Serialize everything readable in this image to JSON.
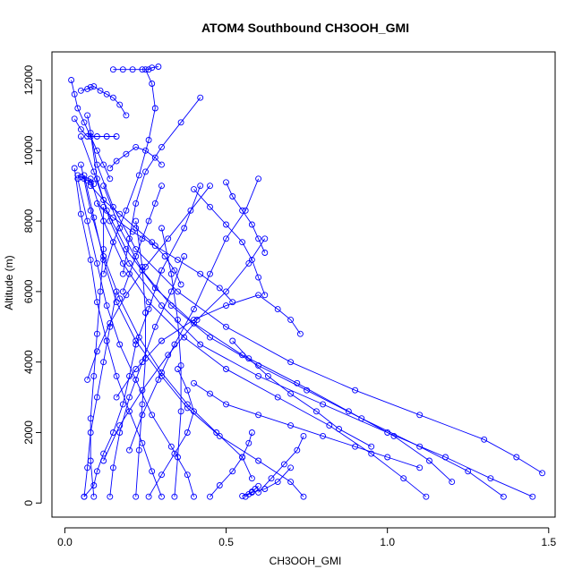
{
  "chart_data": {
    "type": "scatter",
    "title": "ATOM4 Southbound CH3OOH_GMI",
    "xlabel": "CH3OOH_GMI",
    "ylabel": "Altitude (m)",
    "xlim": [
      -0.04,
      1.52
    ],
    "ylim": [
      -400,
      12800
    ],
    "x_ticks": [
      0.0,
      0.5,
      1.0,
      1.5
    ],
    "x_tick_labels": [
      "0.0",
      "0.5",
      "1.0",
      "1.5"
    ],
    "y_ticks": [
      0,
      2000,
      4000,
      6000,
      8000,
      10000,
      12000
    ],
    "y_tick_labels": [
      "0",
      "2000",
      "4000",
      "6000",
      "8000",
      "10000",
      "12000"
    ],
    "grid": false,
    "marker": "open-circle",
    "color": "#0000ff",
    "series": [
      {
        "x": [
          0.06,
          0.09,
          0.1,
          0.12,
          0.15,
          0.18,
          0.2,
          0.22,
          0.26,
          0.3,
          0.37,
          0.42
        ],
        "y": [
          180,
          500,
          900,
          1400,
          2000,
          2800,
          3600,
          4500,
          5500,
          6600,
          7800,
          9000
        ]
      },
      {
        "x": [
          1.48,
          1.4,
          1.3,
          1.1,
          0.9,
          0.7,
          0.5,
          0.35,
          0.22,
          0.15,
          0.1,
          0.07
        ],
        "y": [
          850,
          1300,
          1800,
          2500,
          3200,
          4000,
          5000,
          6000,
          7200,
          8400,
          9600,
          11000
        ]
      },
      {
        "x": [
          1.45,
          1.32,
          1.18,
          1.0,
          0.8,
          0.6,
          0.42,
          0.3,
          0.2,
          0.14,
          0.1,
          0.08
        ],
        "y": [
          180,
          700,
          1300,
          2000,
          2800,
          3600,
          4500,
          5600,
          6800,
          8000,
          9200,
          10500
        ]
      },
      {
        "x": [
          1.36,
          1.25,
          1.1,
          0.92,
          0.75,
          0.6,
          0.45,
          0.33,
          0.24,
          0.17,
          0.12
        ],
        "y": [
          180,
          900,
          1600,
          2400,
          3200,
          3900,
          4700,
          5600,
          6600,
          7800,
          9000
        ]
      },
      {
        "x": [
          1.2,
          1.13,
          1.02,
          0.88,
          0.72,
          0.55,
          0.4,
          0.28,
          0.19,
          0.13,
          0.09,
          0.05
        ],
        "y": [
          600,
          1200,
          1900,
          2600,
          3400,
          4200,
          5100,
          6100,
          7200,
          8300,
          9400,
          10400
        ]
      },
      {
        "x": [
          1.12,
          1.05,
          0.95,
          0.82,
          0.66,
          0.5,
          0.37,
          0.26,
          0.18,
          0.12,
          0.08
        ],
        "y": [
          180,
          700,
          1400,
          2200,
          3000,
          3800,
          4700,
          5700,
          6800,
          8000,
          9200
        ]
      },
      {
        "x": [
          0.74,
          0.7,
          0.6,
          0.48,
          0.38,
          0.3,
          0.22,
          0.16,
          0.12,
          0.09,
          0.06
        ],
        "y": [
          180,
          600,
          1200,
          1900,
          2700,
          3600,
          4600,
          5700,
          6900,
          8100,
          9300
        ]
      },
      {
        "x": [
          0.58,
          0.55,
          0.47,
          0.38,
          0.3,
          0.23,
          0.17,
          0.12,
          0.08,
          0.05
        ],
        "y": [
          700,
          1300,
          2000,
          2800,
          3700,
          4700,
          5800,
          7000,
          8300,
          9600
        ]
      },
      {
        "x": [
          0.4,
          0.38,
          0.33,
          0.27,
          0.22,
          0.17,
          0.13,
          0.1,
          0.07,
          0.04
        ],
        "y": [
          180,
          800,
          1600,
          2500,
          3500,
          4500,
          5600,
          6800,
          8000,
          9200
        ]
      },
      {
        "x": [
          0.3,
          0.27,
          0.24,
          0.2,
          0.16,
          0.13,
          0.1,
          0.08,
          0.05,
          0.03
        ],
        "y": [
          180,
          900,
          1700,
          2600,
          3600,
          4600,
          5700,
          6900,
          8200,
          9500
        ]
      },
      {
        "x": [
          0.14,
          0.15,
          0.17,
          0.2,
          0.24,
          0.28,
          0.33,
          0.37
        ],
        "y": [
          180,
          1000,
          2000,
          3000,
          4000,
          5000,
          6000,
          7000
        ]
      },
      {
        "x": [
          0.2,
          0.24,
          0.29,
          0.34,
          0.4,
          0.45,
          0.5,
          0.56,
          0.6
        ],
        "y": [
          1500,
          2500,
          3500,
          4500,
          5500,
          6500,
          7500,
          8300,
          9200
        ]
      },
      {
        "x": [
          0.12,
          0.17,
          0.24,
          0.32,
          0.41,
          0.5,
          0.57,
          0.62
        ],
        "y": [
          1200,
          2200,
          3200,
          4200,
          5200,
          6000,
          6800,
          7500
        ]
      },
      {
        "x": [
          0.07,
          0.1,
          0.14,
          0.19,
          0.25,
          0.32,
          0.39,
          0.45
        ],
        "y": [
          3500,
          4300,
          5100,
          5900,
          6700,
          7500,
          8300,
          9000
        ]
      },
      {
        "x": [
          0.16,
          0.22,
          0.3,
          0.4,
          0.5,
          0.6,
          0.66,
          0.7,
          0.73
        ],
        "y": [
          3000,
          3800,
          4600,
          5200,
          5600,
          5900,
          5500,
          5200,
          4800
        ]
      },
      {
        "x": [
          0.12,
          0.15,
          0.19,
          0.23,
          0.26,
          0.28,
          0.27,
          0.25
        ],
        "y": [
          6500,
          7400,
          8300,
          9300,
          10300,
          11200,
          11900,
          12300
        ]
      },
      {
        "x": [
          0.15,
          0.18,
          0.21,
          0.24,
          0.26,
          0.27,
          0.29
        ],
        "y": [
          12300,
          12300,
          12300,
          12300,
          12300,
          12350,
          12380
        ]
      },
      {
        "x": [
          0.18,
          0.2,
          0.22,
          0.25,
          0.3,
          0.36,
          0.42
        ],
        "y": [
          6500,
          7500,
          8500,
          9400,
          10100,
          10800,
          11500
        ]
      },
      {
        "x": [
          0.02,
          0.03,
          0.04,
          0.06,
          0.08,
          0.1,
          0.12,
          0.14
        ],
        "y": [
          12000,
          11600,
          11200,
          10800,
          10400,
          10000,
          9600,
          9200
        ]
      },
      {
        "x": [
          0.05,
          0.07,
          0.08,
          0.09,
          0.11,
          0.13,
          0.15,
          0.17,
          0.19
        ],
        "y": [
          11700,
          11750,
          11800,
          11820,
          11700,
          11600,
          11500,
          11300,
          11000
        ]
      },
      {
        "x": [
          0.03,
          0.05,
          0.07,
          0.1,
          0.13,
          0.16
        ],
        "y": [
          10900,
          10600,
          10400,
          10400,
          10400,
          10400
        ]
      },
      {
        "x": [
          0.08,
          0.12,
          0.17,
          0.22,
          0.27,
          0.31,
          0.34,
          0.36
        ],
        "y": [
          9000,
          8600,
          8200,
          7800,
          7400,
          7000,
          6600,
          6200
        ]
      },
      {
        "x": [
          0.1,
          0.15,
          0.21,
          0.28,
          0.35,
          0.42,
          0.48,
          0.52
        ],
        "y": [
          8500,
          8100,
          7700,
          7300,
          6900,
          6500,
          6100,
          5700
        ]
      },
      {
        "x": [
          0.4,
          0.45,
          0.5,
          0.55,
          0.58,
          0.6,
          0.62
        ],
        "y": [
          8900,
          8400,
          7900,
          7400,
          6900,
          6400,
          5900
        ]
      },
      {
        "x": [
          0.5,
          0.52,
          0.55,
          0.58,
          0.6,
          0.62
        ],
        "y": [
          9100,
          8700,
          8300,
          7900,
          7500,
          7100
        ]
      },
      {
        "x": [
          0.06,
          0.07,
          0.08,
          0.1,
          0.12,
          0.14,
          0.16
        ],
        "y": [
          180,
          1000,
          2000,
          3000,
          4000,
          5000,
          6000
        ]
      },
      {
        "x": [
          0.09,
          0.08,
          0.08,
          0.09,
          0.1,
          0.11,
          0.12,
          0.12
        ],
        "y": [
          180,
          1200,
          2400,
          3600,
          4800,
          6000,
          7200,
          8400
        ]
      },
      {
        "x": [
          0.22,
          0.23,
          0.24,
          0.25,
          0.25,
          0.24,
          0.22
        ],
        "y": [
          180,
          1500,
          2800,
          4100,
          5400,
          6700,
          8000
        ]
      },
      {
        "x": [
          0.34,
          0.35,
          0.36,
          0.36,
          0.35,
          0.33,
          0.3
        ],
        "y": [
          180,
          1300,
          2600,
          3900,
          5200,
          6500,
          7800
        ]
      },
      {
        "x": [
          0.45,
          0.48,
          0.52,
          0.55,
          0.57,
          0.58
        ],
        "y": [
          180,
          500,
          900,
          1300,
          1700,
          2000
        ]
      },
      {
        "x": [
          0.6,
          0.64,
          0.68,
          0.72,
          0.74
        ],
        "y": [
          300,
          700,
          1100,
          1500,
          1900
        ]
      },
      {
        "x": [
          1.1,
          1.0,
          0.9,
          0.8,
          0.7,
          0.6,
          0.5,
          0.45,
          0.4
        ],
        "y": [
          1000,
          1300,
          1600,
          1900,
          2200,
          2500,
          2800,
          3100,
          3400
        ]
      },
      {
        "x": [
          0.95,
          0.85,
          0.78,
          0.7,
          0.63,
          0.57,
          0.52
        ],
        "y": [
          1600,
          2100,
          2600,
          3100,
          3600,
          4100,
          4600
        ]
      },
      {
        "x": [
          0.3,
          0.28,
          0.26,
          0.24,
          0.22,
          0.2,
          0.18
        ],
        "y": [
          9000,
          8500,
          8000,
          7500,
          7000,
          6500,
          6000
        ]
      },
      {
        "x": [
          0.26,
          0.3,
          0.34,
          0.38,
          0.4,
          0.38,
          0.35
        ],
        "y": [
          180,
          800,
          1400,
          2000,
          2600,
          3200,
          3800
        ]
      },
      {
        "x": [
          0.56,
          0.57,
          0.58,
          0.59,
          0.6
        ],
        "y": [
          180,
          250,
          320,
          400,
          480
        ]
      },
      {
        "x": [
          0.7,
          0.66,
          0.62,
          0.58,
          0.55
        ],
        "y": [
          1000,
          600,
          400,
          300,
          200
        ]
      },
      {
        "x": [
          0.14,
          0.16,
          0.19,
          0.22,
          0.25,
          0.28,
          0.3
        ],
        "y": [
          9500,
          9700,
          9900,
          10100,
          10000,
          9800,
          9600
        ]
      },
      {
        "x": [
          0.04,
          0.05,
          0.06,
          0.07,
          0.08,
          0.09
        ],
        "y": [
          9300,
          9250,
          9200,
          9150,
          9100,
          9050
        ]
      }
    ]
  }
}
